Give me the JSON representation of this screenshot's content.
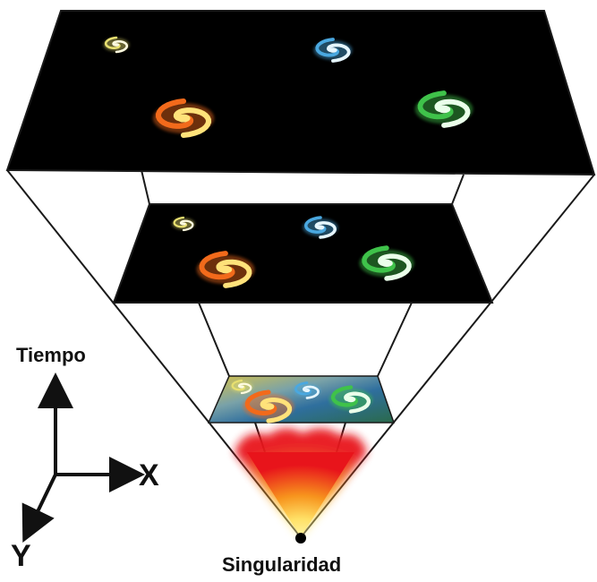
{
  "labels": {
    "time_axis": "Tiempo",
    "x_axis": "X",
    "y_axis": "Y",
    "singularity": "Singularidad"
  },
  "planes": [
    {
      "name": "present-universe",
      "galaxies": [
        {
          "name": "yellow-galaxy",
          "color": "#e8e070",
          "core": "#fffbe0"
        },
        {
          "name": "blue-galaxy",
          "color": "#4aa8e0",
          "core": "#e6f6ff"
        },
        {
          "name": "orange-galaxy",
          "color": "#f26a1b",
          "core": "#ffe27a"
        },
        {
          "name": "green-galaxy",
          "color": "#3fc24a",
          "core": "#eaffea"
        }
      ]
    },
    {
      "name": "earlier-universe",
      "galaxies": [
        {
          "name": "yellow-galaxy",
          "color": "#e8e070",
          "core": "#fffbe0"
        },
        {
          "name": "blue-galaxy",
          "color": "#4aa8e0",
          "core": "#e6f6ff"
        },
        {
          "name": "orange-galaxy",
          "color": "#f26a1b",
          "core": "#ffe27a"
        },
        {
          "name": "green-galaxy",
          "color": "#3fc24a",
          "core": "#eaffea"
        }
      ]
    },
    {
      "name": "early-universe",
      "galaxies": [
        {
          "name": "yellow-galaxy",
          "color": "#e8e070",
          "core": "#fffbe0"
        },
        {
          "name": "blue-galaxy",
          "color": "#4aa8e0",
          "core": "#e6f6ff"
        },
        {
          "name": "orange-galaxy",
          "color": "#f26a1b",
          "core": "#ffe27a"
        },
        {
          "name": "green-galaxy",
          "color": "#3fc24a",
          "core": "#eaffea"
        }
      ]
    }
  ],
  "colors": {
    "plane_fill": "#000000",
    "outline": "#1a1a1a",
    "fireball_outer": "#e8141b",
    "fireball_mid": "#f7941d",
    "fireball_inner": "#fff9b0"
  }
}
